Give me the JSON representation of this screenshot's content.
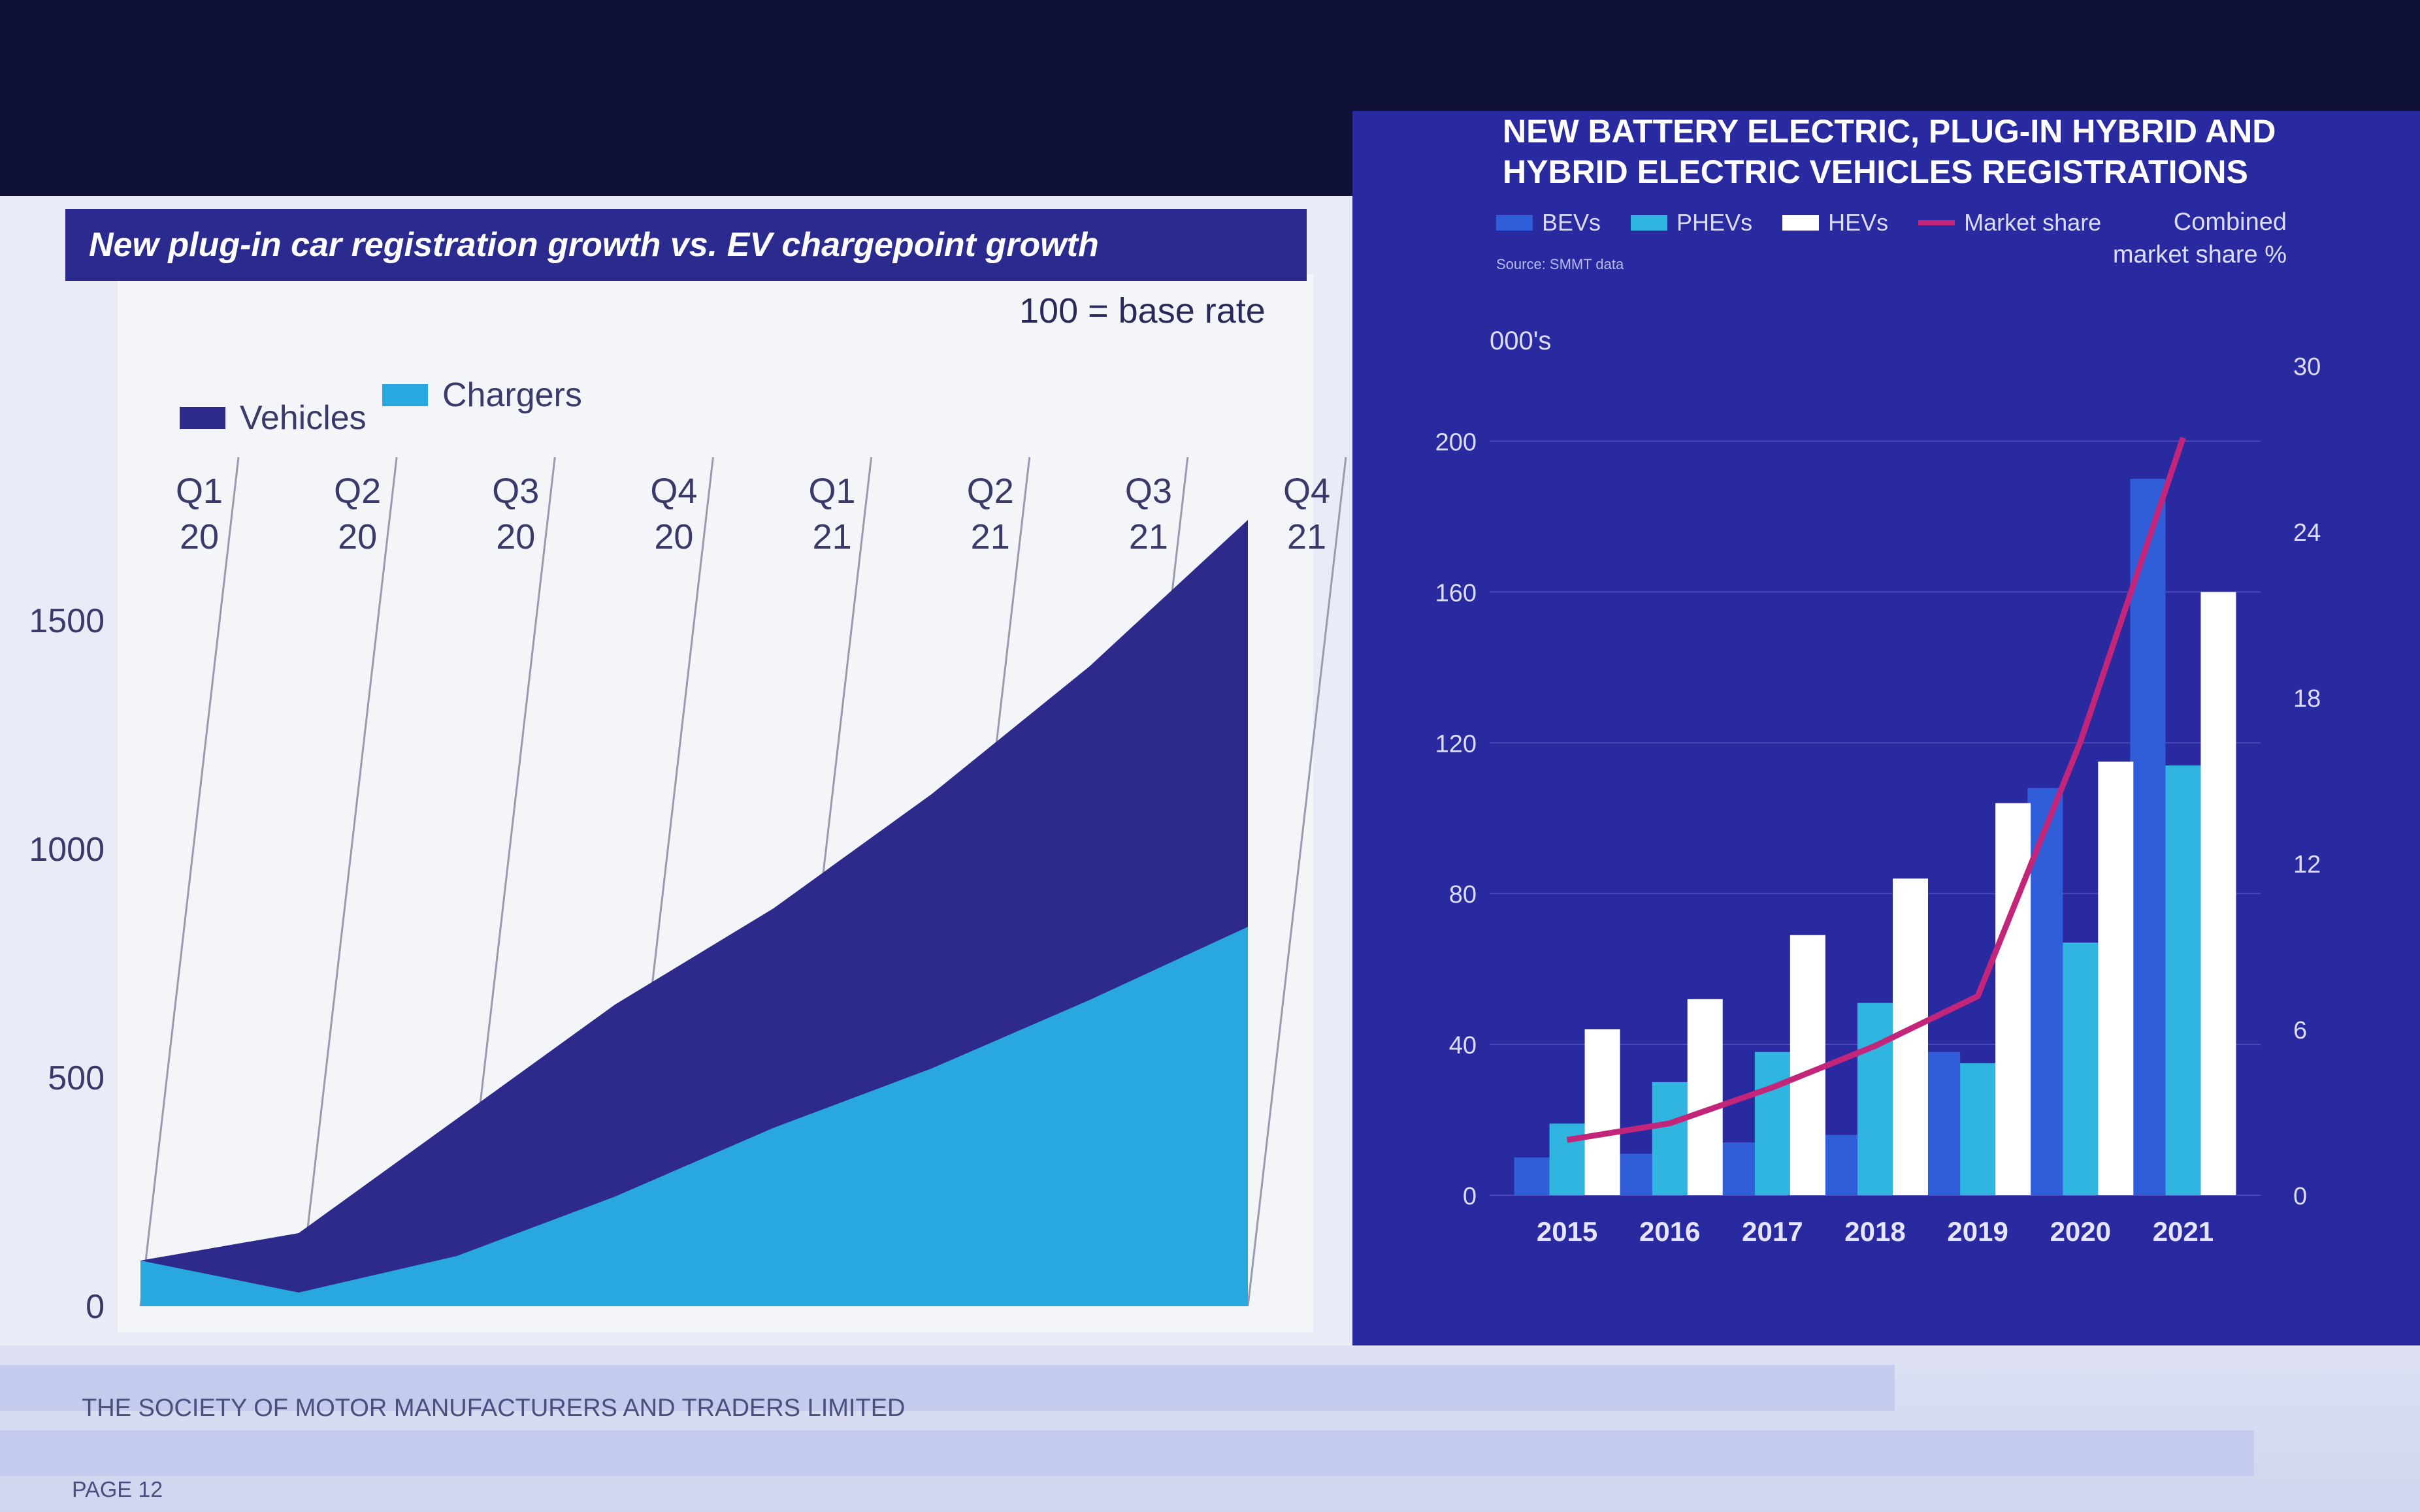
{
  "left_chart": {
    "title": "New plug-in car registration growth vs. EV chargepoint growth",
    "note": "100 = base rate",
    "legend": [
      "Vehicles",
      "Chargers"
    ],
    "colors": {
      "vehicles": "#2d2a8c",
      "chargers": "#29a8df"
    }
  },
  "right_chart": {
    "title_line1": "NEW BATTERY ELECTRIC, PLUG-IN HYBRID AND",
    "title_line2": "HYBRID ELECTRIC VEHICLES REGISTRATIONS",
    "legend": [
      "BEVs",
      "PHEVs",
      "HEVs",
      "Market share"
    ],
    "source": "Source: SMMT data",
    "units_left": "000's",
    "units_right_line1": "Combined",
    "units_right_line2": "market share %",
    "colors": {
      "bev": "#2f5ed8",
      "phev": "#2fb5e0",
      "hev": "#ffffff",
      "share": "#c2257a",
      "bg": "#2a2aa0"
    }
  },
  "footer": {
    "org": "THE SOCIETY OF MOTOR MANUFACTURERS AND TRADERS LIMITED",
    "page": "PAGE 12"
  },
  "chart_data": [
    {
      "type": "area",
      "title": "New plug-in car registration growth vs. EV chargepoint growth",
      "note": "100 = base rate",
      "categories": [
        "Q1 20",
        "Q2 20",
        "Q3 20",
        "Q4 20",
        "Q1 21",
        "Q2 21",
        "Q3 21",
        "Q4 21"
      ],
      "yticks": [
        0,
        500,
        1000,
        1500
      ],
      "ylim": [
        0,
        1800
      ],
      "series": [
        {
          "name": "Vehicles",
          "values": [
            100,
            160,
            410,
            660,
            870,
            1120,
            1400,
            1720
          ]
        },
        {
          "name": "Chargers",
          "values": [
            100,
            30,
            110,
            240,
            390,
            520,
            670,
            830
          ]
        }
      ],
      "legend_position": "top-left"
    },
    {
      "type": "bar",
      "title": "NEW BATTERY ELECTRIC, PLUG-IN HYBRID AND HYBRID ELECTRIC VEHICLES REGISTRATIONS",
      "categories": [
        "2015",
        "2016",
        "2017",
        "2018",
        "2019",
        "2020",
        "2021"
      ],
      "ylabel": "000's",
      "ylim": [
        0,
        220
      ],
      "yticks": [
        0,
        40,
        80,
        120,
        160,
        200
      ],
      "y2label": "Combined market share %",
      "y2lim": [
        0,
        30
      ],
      "y2ticks": [
        0,
        6,
        12,
        18,
        24,
        30
      ],
      "series": [
        {
          "name": "BEVs",
          "values": [
            10,
            11,
            14,
            16,
            38,
            108,
            190
          ]
        },
        {
          "name": "PHEVs",
          "values": [
            19,
            30,
            38,
            51,
            35,
            67,
            114
          ]
        },
        {
          "name": "HEVs",
          "values": [
            44,
            52,
            69,
            84,
            104,
            115,
            160
          ]
        },
        {
          "name": "Market share",
          "axis": "y2",
          "values": [
            2.0,
            2.6,
            3.9,
            5.4,
            7.2,
            16.4,
            27.4
          ]
        }
      ],
      "legend_position": "top-left"
    }
  ]
}
